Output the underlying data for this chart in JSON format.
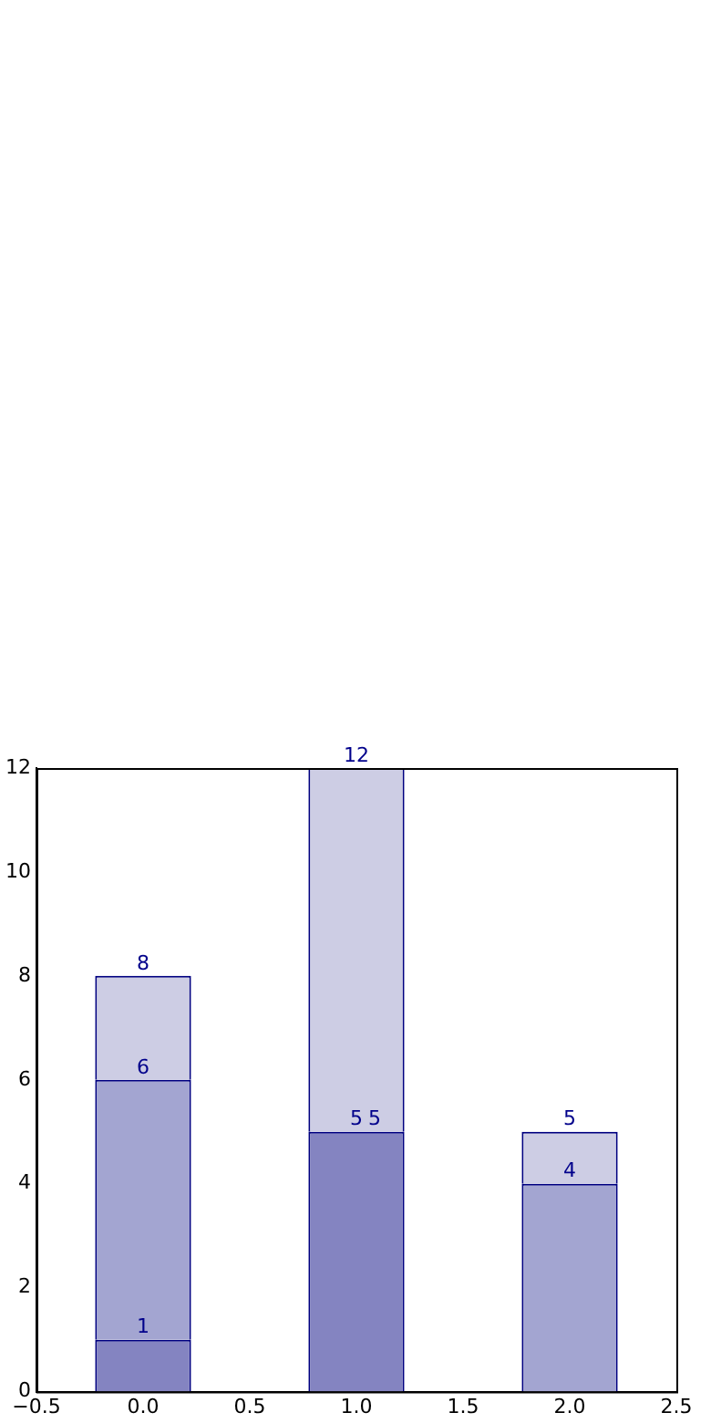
{
  "chart_data": {
    "type": "bar",
    "stacked": true,
    "x": [
      0,
      1,
      2
    ],
    "xlim": [
      -0.5,
      2.5
    ],
    "xticks": [
      {
        "value": -0.5,
        "label": "−0.5"
      },
      {
        "value": 0,
        "label": "0.0"
      },
      {
        "value": 0.5,
        "label": "0.5"
      },
      {
        "value": 1,
        "label": "1.0"
      },
      {
        "value": 1.5,
        "label": "1.5"
      },
      {
        "value": 2,
        "label": "2.0"
      },
      {
        "value": 2.5,
        "label": "2.5"
      }
    ],
    "ylim": [
      0,
      12
    ],
    "yticks": [
      0,
      2,
      4,
      6,
      8,
      10,
      12
    ],
    "grid": false,
    "legend": false,
    "series": [
      {
        "color": "#8484c1",
        "values": [
          1,
          5,
          0
        ]
      },
      {
        "color": "#a3a5d1",
        "values": [
          5,
          0,
          4
        ]
      },
      {
        "color": "#cdcde4",
        "values": [
          2,
          7,
          1
        ]
      }
    ],
    "annotations": [
      {
        "text": "1",
        "x": 0,
        "y": 1
      },
      {
        "text": "6",
        "x": 0,
        "y": 6
      },
      {
        "text": "8",
        "x": 0,
        "y": 8
      },
      {
        "text": "5",
        "x": 1,
        "y": 5
      },
      {
        "text": "5",
        "x": 1,
        "y": 5
      },
      {
        "text": "12",
        "x": 1,
        "y": 12
      },
      {
        "text": "4",
        "x": 2,
        "y": 4
      },
      {
        "text": "5",
        "x": 2,
        "y": 5
      }
    ]
  }
}
